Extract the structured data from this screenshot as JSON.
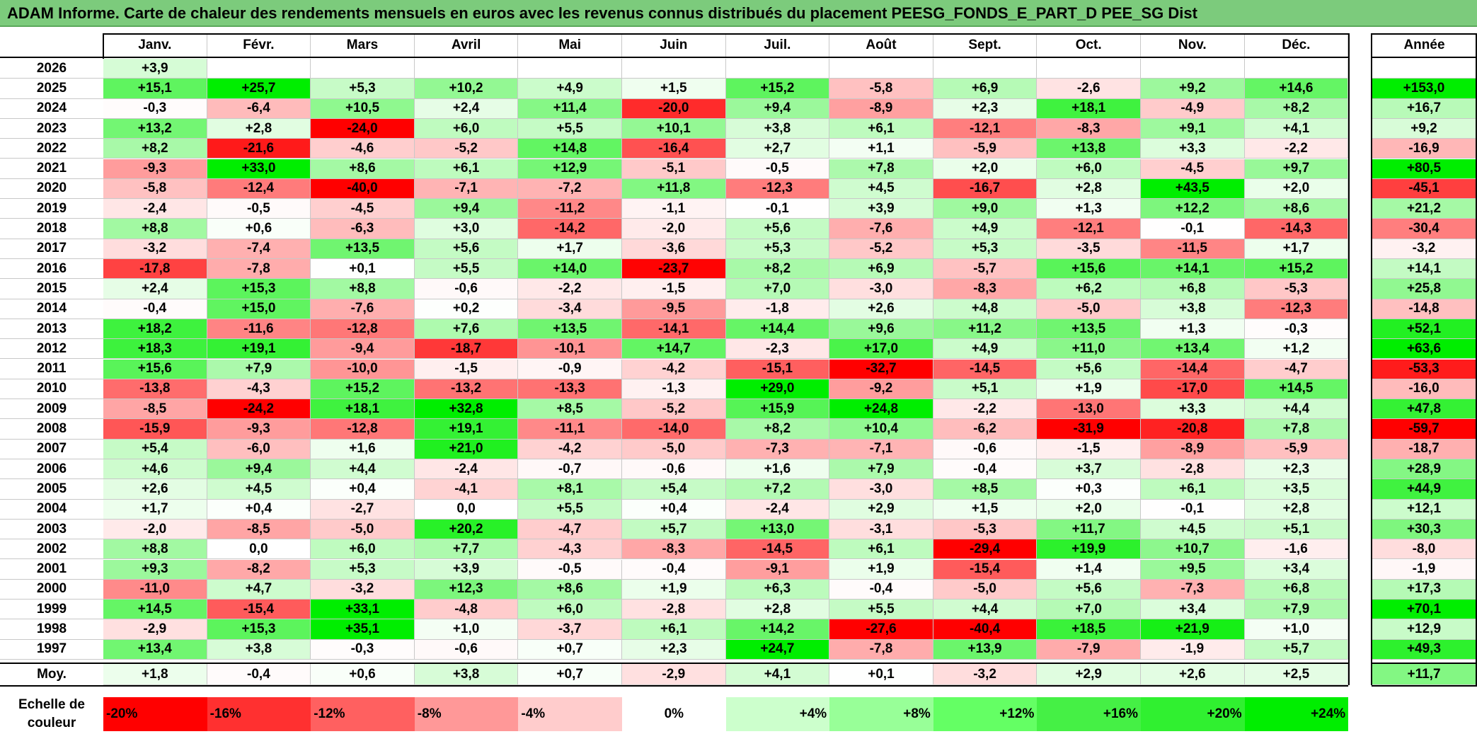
{
  "title": "ADAM Informe. Carte de chaleur des rendements mensuels en euros avec les revenus connus distribués du placement PEESG_FONDS_E_PART_D PEE_SG Dist",
  "chart_data": {
    "type": "heatmap",
    "months": [
      "Janv.",
      "Févr.",
      "Mars",
      "Avril",
      "Mai",
      "Juin",
      "Juil.",
      "Août",
      "Sept.",
      "Oct.",
      "Nov.",
      "Déc."
    ],
    "year_header": "Année",
    "rows": [
      {
        "year": "2026",
        "values": [
          "+3,9",
          "",
          "",
          "",
          "",
          "",
          "",
          "",
          "",
          "",
          "",
          ""
        ],
        "annual": ""
      },
      {
        "year": "2025",
        "values": [
          "+15,1",
          "+25,7",
          "+5,3",
          "+10,2",
          "+4,9",
          "+1,5",
          "+15,2",
          "-5,8",
          "+6,9",
          "-2,6",
          "+9,2",
          "+14,6"
        ],
        "annual": "+153,0"
      },
      {
        "year": "2024",
        "values": [
          "-0,3",
          "-6,4",
          "+10,5",
          "+2,4",
          "+11,4",
          "-20,0",
          "+9,4",
          "-8,9",
          "+2,3",
          "+18,1",
          "-4,9",
          "+8,2"
        ],
        "annual": "+16,7"
      },
      {
        "year": "2023",
        "values": [
          "+13,2",
          "+2,8",
          "-24,0",
          "+6,0",
          "+5,5",
          "+10,1",
          "+3,8",
          "+6,1",
          "-12,1",
          "-8,3",
          "+9,1",
          "+4,1"
        ],
        "annual": "+9,2"
      },
      {
        "year": "2022",
        "values": [
          "+8,2",
          "-21,6",
          "-4,6",
          "-5,2",
          "+14,8",
          "-16,4",
          "+2,7",
          "+1,1",
          "-5,9",
          "+13,8",
          "+3,3",
          "-2,2"
        ],
        "annual": "-16,9"
      },
      {
        "year": "2021",
        "values": [
          "-9,3",
          "+33,0",
          "+8,6",
          "+6,1",
          "+12,9",
          "-5,1",
          "-0,5",
          "+7,8",
          "+2,0",
          "+6,0",
          "-4,5",
          "+9,7"
        ],
        "annual": "+80,5"
      },
      {
        "year": "2020",
        "values": [
          "-5,8",
          "-12,4",
          "-40,0",
          "-7,1",
          "-7,2",
          "+11,8",
          "-12,3",
          "+4,5",
          "-16,7",
          "+2,8",
          "+43,5",
          "+2,0"
        ],
        "annual": "-45,1"
      },
      {
        "year": "2019",
        "values": [
          "-2,4",
          "-0,5",
          "-4,5",
          "+9,4",
          "-11,2",
          "-1,1",
          "-0,1",
          "+3,9",
          "+9,0",
          "+1,3",
          "+12,2",
          "+8,6"
        ],
        "annual": "+21,2"
      },
      {
        "year": "2018",
        "values": [
          "+8,8",
          "+0,6",
          "-6,3",
          "+3,0",
          "-14,2",
          "-2,0",
          "+5,6",
          "-7,6",
          "+4,9",
          "-12,1",
          "-0,1",
          "-14,3"
        ],
        "annual": "-30,4"
      },
      {
        "year": "2017",
        "values": [
          "-3,2",
          "-7,4",
          "+13,5",
          "+5,6",
          "+1,7",
          "-3,6",
          "+5,3",
          "-5,2",
          "+5,3",
          "-3,5",
          "-11,5",
          "+1,7"
        ],
        "annual": "-3,2"
      },
      {
        "year": "2016",
        "values": [
          "-17,8",
          "-7,8",
          "+0,1",
          "+5,5",
          "+14,0",
          "-23,7",
          "+8,2",
          "+6,9",
          "-5,7",
          "+15,6",
          "+14,1",
          "+15,2"
        ],
        "annual": "+14,1"
      },
      {
        "year": "2015",
        "values": [
          "+2,4",
          "+15,3",
          "+8,8",
          "-0,6",
          "-2,2",
          "-1,5",
          "+7,0",
          "-3,0",
          "-8,3",
          "+6,2",
          "+6,8",
          "-5,3"
        ],
        "annual": "+25,8"
      },
      {
        "year": "2014",
        "values": [
          "-0,4",
          "+15,0",
          "-7,6",
          "+0,2",
          "-3,4",
          "-9,5",
          "-1,8",
          "+2,6",
          "+4,8",
          "-5,0",
          "+3,8",
          "-12,3"
        ],
        "annual": "-14,8"
      },
      {
        "year": "2013",
        "values": [
          "+18,2",
          "-11,6",
          "-12,8",
          "+7,6",
          "+13,5",
          "-14,1",
          "+14,4",
          "+9,6",
          "+11,2",
          "+13,5",
          "+1,3",
          "-0,3"
        ],
        "annual": "+52,1"
      },
      {
        "year": "2012",
        "values": [
          "+18,3",
          "+19,1",
          "-9,4",
          "-18,7",
          "-10,1",
          "+14,7",
          "-2,3",
          "+17,0",
          "+4,9",
          "+11,0",
          "+13,4",
          "+1,2"
        ],
        "annual": "+63,6"
      },
      {
        "year": "2011",
        "values": [
          "+15,6",
          "+7,9",
          "-10,0",
          "-1,5",
          "-0,9",
          "-4,2",
          "-15,1",
          "-32,7",
          "-14,5",
          "+5,6",
          "-14,4",
          "-4,7"
        ],
        "annual": "-53,3"
      },
      {
        "year": "2010",
        "values": [
          "-13,8",
          "-4,3",
          "+15,2",
          "-13,2",
          "-13,3",
          "-1,3",
          "+29,0",
          "-9,2",
          "+5,1",
          "+1,9",
          "-17,0",
          "+14,5"
        ],
        "annual": "-16,0"
      },
      {
        "year": "2009",
        "values": [
          "-8,5",
          "-24,2",
          "+18,1",
          "+32,8",
          "+8,5",
          "-5,2",
          "+15,9",
          "+24,8",
          "-2,2",
          "-13,0",
          "+3,3",
          "+4,4"
        ],
        "annual": "+47,8"
      },
      {
        "year": "2008",
        "values": [
          "-15,9",
          "-9,3",
          "-12,8",
          "+19,1",
          "-11,1",
          "-14,0",
          "+8,2",
          "+10,4",
          "-6,2",
          "-31,9",
          "-20,8",
          "+7,8"
        ],
        "annual": "-59,7"
      },
      {
        "year": "2007",
        "values": [
          "+5,4",
          "-6,0",
          "+1,6",
          "+21,0",
          "-4,2",
          "-5,0",
          "-7,3",
          "-7,1",
          "-0,6",
          "-1,5",
          "-8,9",
          "-5,9"
        ],
        "annual": "-18,7"
      },
      {
        "year": "2006",
        "values": [
          "+4,6",
          "+9,4",
          "+4,4",
          "-2,4",
          "-0,7",
          "-0,6",
          "+1,6",
          "+7,9",
          "-0,4",
          "+3,7",
          "-2,8",
          "+2,3"
        ],
        "annual": "+28,9"
      },
      {
        "year": "2005",
        "values": [
          "+2,6",
          "+4,5",
          "+0,4",
          "-4,1",
          "+8,1",
          "+5,4",
          "+7,2",
          "-3,0",
          "+8,5",
          "+0,3",
          "+6,1",
          "+3,5"
        ],
        "annual": "+44,9"
      },
      {
        "year": "2004",
        "values": [
          "+1,7",
          "+0,4",
          "-2,7",
          "0,0",
          "+5,5",
          "+0,4",
          "-2,4",
          "+2,9",
          "+1,5",
          "+2,0",
          "-0,1",
          "+2,8"
        ],
        "annual": "+12,1"
      },
      {
        "year": "2003",
        "values": [
          "-2,0",
          "-8,5",
          "-5,0",
          "+20,2",
          "-4,7",
          "+5,7",
          "+13,0",
          "-3,1",
          "-5,3",
          "+11,7",
          "+4,5",
          "+5,1"
        ],
        "annual": "+30,3"
      },
      {
        "year": "2002",
        "values": [
          "+8,8",
          "0,0",
          "+6,0",
          "+7,7",
          "-4,3",
          "-8,3",
          "-14,5",
          "+6,1",
          "-29,4",
          "+19,9",
          "+10,7",
          "-1,6"
        ],
        "annual": "-8,0"
      },
      {
        "year": "2001",
        "values": [
          "+9,3",
          "-8,2",
          "+5,3",
          "+3,9",
          "-0,5",
          "-0,4",
          "-9,1",
          "+1,9",
          "-15,4",
          "+1,4",
          "+9,5",
          "+3,4"
        ],
        "annual": "-1,9"
      },
      {
        "year": "2000",
        "values": [
          "-11,0",
          "+4,7",
          "-3,2",
          "+12,3",
          "+8,6",
          "+1,9",
          "+6,3",
          "-0,4",
          "-5,0",
          "+5,6",
          "-7,3",
          "+6,8"
        ],
        "annual": "+17,3"
      },
      {
        "year": "1999",
        "values": [
          "+14,5",
          "-15,4",
          "+33,1",
          "-4,8",
          "+6,0",
          "-2,8",
          "+2,8",
          "+5,5",
          "+4,4",
          "+7,0",
          "+3,4",
          "+7,9"
        ],
        "annual": "+70,1"
      },
      {
        "year": "1998",
        "values": [
          "-2,9",
          "+15,3",
          "+35,1",
          "+1,0",
          "-3,7",
          "+6,1",
          "+14,2",
          "-27,6",
          "-40,4",
          "+18,5",
          "+21,9",
          "+1,0"
        ],
        "annual": "+12,9"
      },
      {
        "year": "1997",
        "values": [
          "+13,4",
          "+3,8",
          "-0,3",
          "-0,6",
          "+0,7",
          "+2,3",
          "+24,7",
          "-7,8",
          "+13,9",
          "-7,9",
          "-1,9",
          "+5,7"
        ],
        "annual": "+49,3"
      }
    ],
    "average": {
      "label": "Moy.",
      "values": [
        "+1,8",
        "-0,4",
        "+0,6",
        "+3,8",
        "+0,7",
        "-2,9",
        "+4,1",
        "+0,1",
        "-3,2",
        "+2,9",
        "+2,6",
        "+2,5"
      ],
      "annual": "+11,7"
    },
    "scale": {
      "label_line1": "Echelle de",
      "label_line2": "couleur",
      "labels": [
        "-20%",
        "-16%",
        "-12%",
        "-8%",
        "-4%",
        "0%",
        "+4%",
        "+8%",
        "+12%",
        "+16%",
        "+20%",
        "+24%"
      ],
      "colors": [
        "#ff0000",
        "#ff3030",
        "#ff6060",
        "#ff9898",
        "#ffcccc",
        "#ffffff",
        "#ccffcc",
        "#98ff98",
        "#64ff64",
        "#45f045",
        "#30f030",
        "#00ee00"
      ]
    }
  }
}
